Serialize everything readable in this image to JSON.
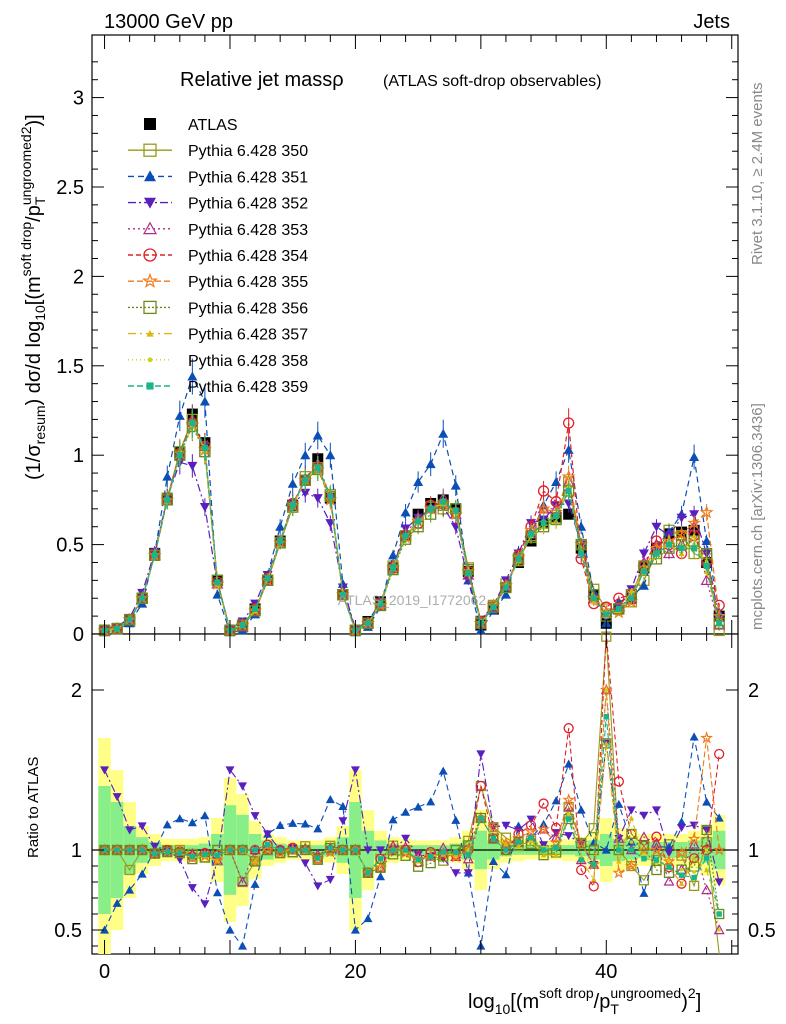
{
  "header": {
    "left": "13000 GeV pp",
    "right": "Jets"
  },
  "side_labels": {
    "rivet": "Rivet 3.1.10, ≥ 2.4M events",
    "mcplots": "mcplots.cern.ch [arXiv:1306.3436]"
  },
  "watermark": "ATLAS_2019_I1772062",
  "chart_data": [
    {
      "type": "line",
      "title": "Relative jet massρ",
      "subtitle": "(ATLAS soft-drop observables)",
      "ylabel": "(1/σresum) dσ/d log10[(m^soft drop/pT^ungroomed)^2]",
      "ylim": [
        0,
        3.35
      ],
      "xlim": [
        -1,
        50.5
      ],
      "yticks": [
        0,
        0.5,
        1,
        1.5,
        2,
        2.5,
        3
      ],
      "ytick_labels": [
        "0",
        "0.5",
        "1",
        "1.5",
        "2",
        "2.5",
        "3"
      ],
      "legend_position": "top-left",
      "legend": [
        "ATLAS",
        "Pythia 6.428 350",
        "Pythia 6.428 351",
        "Pythia 6.428 352",
        "Pythia 6.428 353",
        "Pythia 6.428 354",
        "Pythia 6.428 355",
        "Pythia 6.428 356",
        "Pythia 6.428 357",
        "Pythia 6.428 358",
        "Pythia 6.428 359"
      ],
      "x": [
        0,
        1,
        2,
        3,
        4,
        5,
        6,
        7,
        8,
        9,
        10,
        11,
        12,
        13,
        14,
        15,
        16,
        17,
        18,
        19,
        20,
        21,
        22,
        23,
        24,
        25,
        26,
        27,
        28,
        29,
        30,
        31,
        32,
        33,
        34,
        35,
        36,
        37,
        38,
        39,
        40,
        41,
        42,
        43,
        44,
        45,
        46,
        47,
        48,
        49
      ],
      "series": [
        {
          "name": "ATLAS",
          "color": "#000000",
          "marker": "square-filled",
          "values": [
            0.02,
            0.03,
            0.08,
            0.2,
            0.45,
            0.76,
            1.02,
            1.23,
            1.07,
            0.3,
            0.02,
            0.05,
            0.14,
            0.3,
            0.52,
            0.72,
            0.86,
            0.98,
            0.76,
            0.22,
            0.02,
            0.07,
            0.18,
            0.37,
            0.55,
            0.67,
            0.73,
            0.75,
            0.7,
            0.35,
            0.05,
            0.14,
            0.26,
            0.4,
            0.52,
            0.62,
            0.65,
            0.67,
            0.48,
            0.22,
            0.06,
            0.14,
            0.2,
            0.37,
            0.48,
            0.56,
            0.57,
            0.58,
            0.4,
            0.1
          ]
        },
        {
          "name": "Pythia 6.428 350",
          "color": "#9a9a1a",
          "marker": "square-open",
          "values": [
            0.02,
            0.03,
            0.07,
            0.2,
            0.44,
            0.76,
            1.02,
            1.2,
            1.02,
            0.3,
            0.02,
            0.04,
            0.13,
            0.3,
            0.51,
            0.71,
            0.88,
            0.93,
            0.78,
            0.22,
            0.02,
            0.06,
            0.17,
            0.38,
            0.55,
            0.62,
            0.71,
            0.7,
            0.7,
            0.37,
            0.07,
            0.16,
            0.28,
            0.41,
            0.55,
            0.62,
            0.65,
            0.85,
            0.5,
            0.25,
            0.14,
            0.14,
            0.18,
            0.3,
            0.45,
            0.58,
            0.55,
            0.45,
            0.42,
            0.02
          ]
        },
        {
          "name": "Pythia 6.428 351",
          "color": "#0b4eb5",
          "marker": "triangle-up-filled",
          "values": [
            0.01,
            0.02,
            0.06,
            0.17,
            0.45,
            0.88,
            1.22,
            1.44,
            1.3,
            0.22,
            0.01,
            0.02,
            0.11,
            0.33,
            0.6,
            0.84,
            1.0,
            1.11,
            1.0,
            0.28,
            0.01,
            0.04,
            0.15,
            0.44,
            0.68,
            0.85,
            0.95,
            1.12,
            0.83,
            0.3,
            0.02,
            0.13,
            0.22,
            0.46,
            0.56,
            0.72,
            0.85,
            1.03,
            0.6,
            0.23,
            0.06,
            0.18,
            0.21,
            0.27,
            0.49,
            0.57,
            0.67,
            0.99,
            0.52,
            0.12
          ]
        },
        {
          "name": "Pythia 6.428 352",
          "color": "#5a1fbd",
          "marker": "triangle-down-filled",
          "values": [
            0.03,
            0.04,
            0.09,
            0.23,
            0.46,
            0.76,
            0.96,
            0.94,
            0.71,
            0.28,
            0.03,
            0.07,
            0.17,
            0.33,
            0.52,
            0.73,
            0.79,
            0.76,
            0.62,
            0.26,
            0.03,
            0.07,
            0.18,
            0.37,
            0.59,
            0.65,
            0.7,
            0.71,
            0.6,
            0.3,
            0.08,
            0.16,
            0.3,
            0.45,
            0.62,
            0.64,
            0.72,
            0.73,
            0.5,
            0.2,
            0.1,
            0.15,
            0.25,
            0.45,
            0.6,
            0.55,
            0.65,
            0.67,
            0.45,
            0.08
          ]
        },
        {
          "name": "Pythia 6.428 353",
          "color": "#b02a8a",
          "marker": "triangle-up-open",
          "values": [
            0.02,
            0.03,
            0.08,
            0.2,
            0.44,
            0.75,
            1.01,
            1.2,
            1.05,
            0.28,
            0.02,
            0.04,
            0.14,
            0.3,
            0.52,
            0.72,
            0.87,
            0.95,
            0.77,
            0.22,
            0.02,
            0.06,
            0.16,
            0.38,
            0.56,
            0.65,
            0.7,
            0.76,
            0.67,
            0.33,
            0.06,
            0.15,
            0.27,
            0.42,
            0.56,
            0.7,
            0.7,
            0.85,
            0.45,
            0.2,
            0.12,
            0.15,
            0.2,
            0.4,
            0.5,
            0.45,
            0.5,
            0.6,
            0.3,
            0.05
          ]
        },
        {
          "name": "Pythia 6.428 354",
          "color": "#e0202a",
          "marker": "circle-open",
          "values": [
            0.02,
            0.03,
            0.08,
            0.2,
            0.44,
            0.76,
            1.01,
            1.18,
            1.05,
            0.29,
            0.02,
            0.05,
            0.14,
            0.31,
            0.52,
            0.73,
            0.86,
            0.93,
            0.76,
            0.22,
            0.02,
            0.06,
            0.17,
            0.37,
            0.55,
            0.62,
            0.72,
            0.73,
            0.68,
            0.35,
            0.07,
            0.15,
            0.26,
            0.44,
            0.6,
            0.8,
            0.74,
            1.18,
            0.42,
            0.17,
            0.15,
            0.2,
            0.22,
            0.38,
            0.52,
            0.5,
            0.45,
            0.55,
            0.4,
            0.16
          ]
        },
        {
          "name": "Pythia 6.428 355",
          "color": "#f07a1a",
          "marker": "star-open",
          "values": [
            0.02,
            0.03,
            0.08,
            0.2,
            0.44,
            0.75,
            1.01,
            1.17,
            1.03,
            0.28,
            0.02,
            0.05,
            0.13,
            0.3,
            0.51,
            0.72,
            0.86,
            0.92,
            0.75,
            0.22,
            0.02,
            0.06,
            0.16,
            0.37,
            0.54,
            0.63,
            0.7,
            0.73,
            0.67,
            0.35,
            0.06,
            0.16,
            0.27,
            0.43,
            0.58,
            0.7,
            0.68,
            0.88,
            0.5,
            0.2,
            0.12,
            0.12,
            0.18,
            0.37,
            0.48,
            0.52,
            0.56,
            0.62,
            0.68,
            0.1
          ]
        },
        {
          "name": "Pythia 6.428 356",
          "color": "#6b8a1a",
          "marker": "square-open",
          "values": [
            0.02,
            0.03,
            0.08,
            0.2,
            0.44,
            0.75,
            1.0,
            1.16,
            1.02,
            0.3,
            0.02,
            0.05,
            0.13,
            0.3,
            0.51,
            0.71,
            0.86,
            0.92,
            0.77,
            0.22,
            0.02,
            0.06,
            0.16,
            0.36,
            0.53,
            0.6,
            0.67,
            0.72,
            0.7,
            0.36,
            0.06,
            0.15,
            0.26,
            0.42,
            0.54,
            0.6,
            0.64,
            0.8,
            0.5,
            0.22,
            0.1,
            0.14,
            0.22,
            0.38,
            0.42,
            0.48,
            0.5,
            0.52,
            0.45,
            0.06
          ]
        },
        {
          "name": "Pythia 6.428 357",
          "color": "#d9b80f",
          "marker": "triangle-small",
          "values": [
            0.02,
            0.03,
            0.08,
            0.2,
            0.44,
            0.75,
            1.0,
            1.17,
            1.03,
            0.28,
            0.02,
            0.05,
            0.13,
            0.31,
            0.52,
            0.72,
            0.86,
            0.93,
            0.77,
            0.22,
            0.02,
            0.06,
            0.17,
            0.37,
            0.55,
            0.63,
            0.7,
            0.73,
            0.68,
            0.34,
            0.06,
            0.15,
            0.27,
            0.41,
            0.55,
            0.6,
            0.63,
            0.82,
            0.45,
            0.18,
            0.1,
            0.13,
            0.24,
            0.35,
            0.45,
            0.5,
            0.45,
            0.55,
            0.35,
            0.06
          ]
        },
        {
          "name": "Pythia 6.428 358",
          "color": "#c8d41a",
          "marker": "dot",
          "values": [
            0.02,
            0.03,
            0.08,
            0.2,
            0.44,
            0.75,
            1.0,
            1.17,
            1.04,
            0.29,
            0.02,
            0.05,
            0.14,
            0.31,
            0.52,
            0.72,
            0.86,
            0.93,
            0.77,
            0.22,
            0.02,
            0.06,
            0.17,
            0.37,
            0.54,
            0.62,
            0.7,
            0.74,
            0.69,
            0.35,
            0.06,
            0.15,
            0.26,
            0.42,
            0.55,
            0.63,
            0.66,
            0.82,
            0.46,
            0.2,
            0.12,
            0.14,
            0.21,
            0.36,
            0.44,
            0.52,
            0.5,
            0.5,
            0.4,
            0.05
          ]
        },
        {
          "name": "Pythia 6.428 359",
          "color": "#1ab58a",
          "marker": "square-small",
          "values": [
            0.02,
            0.03,
            0.08,
            0.2,
            0.44,
            0.75,
            1.0,
            1.18,
            1.04,
            0.29,
            0.02,
            0.05,
            0.14,
            0.31,
            0.52,
            0.72,
            0.86,
            0.93,
            0.77,
            0.22,
            0.02,
            0.06,
            0.17,
            0.37,
            0.55,
            0.63,
            0.7,
            0.74,
            0.69,
            0.34,
            0.06,
            0.15,
            0.26,
            0.42,
            0.56,
            0.62,
            0.66,
            0.8,
            0.45,
            0.2,
            0.11,
            0.14,
            0.2,
            0.35,
            0.45,
            0.5,
            0.48,
            0.48,
            0.38,
            0.06
          ]
        }
      ]
    },
    {
      "type": "line",
      "ylabel": "Ratio to ATLAS",
      "ylim": [
        0.35,
        2.35
      ],
      "xlim": [
        -1,
        50.5
      ],
      "xlabel": "log10[(m^soft drop/pT^ungroomed)^2]",
      "xticks": [
        0,
        20,
        40
      ],
      "xtick_labels": [
        "0",
        "20",
        "40"
      ],
      "yticks": [
        0.5,
        1,
        2
      ],
      "ytick_labels": [
        "0.5",
        "1",
        "2"
      ],
      "reference_line": 1,
      "uncertainty_band": {
        "inner_color": "#88ee88",
        "outer_color": "#ffff88",
        "inner_halfwidth": [
          0.4,
          0.3,
          0.15,
          0.08,
          0.05,
          0.03,
          0.03,
          0.03,
          0.04,
          0.1,
          0.28,
          0.22,
          0.1,
          0.06,
          0.04,
          0.03,
          0.03,
          0.03,
          0.04,
          0.08,
          0.3,
          0.12,
          0.06,
          0.04,
          0.03,
          0.03,
          0.03,
          0.03,
          0.04,
          0.06,
          0.12,
          0.06,
          0.04,
          0.03,
          0.03,
          0.03,
          0.03,
          0.03,
          0.04,
          0.06,
          0.1,
          0.07,
          0.06,
          0.05,
          0.05,
          0.05,
          0.05,
          0.06,
          0.08,
          0.12
        ],
        "outer_halfwidth": [
          0.7,
          0.5,
          0.3,
          0.15,
          0.1,
          0.07,
          0.07,
          0.07,
          0.08,
          0.2,
          0.45,
          0.35,
          0.18,
          0.1,
          0.08,
          0.06,
          0.06,
          0.06,
          0.08,
          0.15,
          0.5,
          0.25,
          0.12,
          0.08,
          0.07,
          0.06,
          0.06,
          0.06,
          0.08,
          0.12,
          0.25,
          0.12,
          0.08,
          0.07,
          0.06,
          0.06,
          0.06,
          0.07,
          0.08,
          0.12,
          0.2,
          0.14,
          0.12,
          0.1,
          0.1,
          0.1,
          0.1,
          0.12,
          0.16,
          0.22
        ]
      }
    }
  ]
}
